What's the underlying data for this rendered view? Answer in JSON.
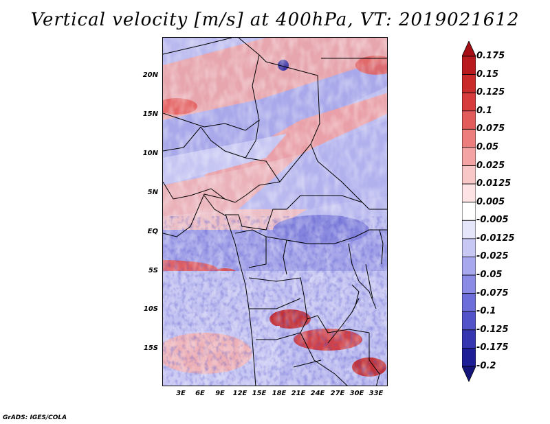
{
  "title": "Vertical velocity [m/s] at 400hPa, VT: 2019021612",
  "credit": "GrADS: IGES/COLA",
  "map": {
    "lat_labels": [
      "20N",
      "15N",
      "10N",
      "5N",
      "EQ",
      "5S",
      "10S",
      "15S"
    ],
    "lon_labels": [
      "3E",
      "6E",
      "9E",
      "12E",
      "15E",
      "18E",
      "21E",
      "24E",
      "27E",
      "30E",
      "33E"
    ]
  },
  "colorbar": {
    "labels": [
      "0.175",
      "0.15",
      "0.125",
      "0.1",
      "0.075",
      "0.05",
      "0.025",
      "0.0125",
      "0.005",
      "-0.005",
      "-0.0125",
      "-0.025",
      "-0.05",
      "-0.075",
      "-0.1",
      "-0.125",
      "-0.175",
      "-0.2"
    ],
    "colors": [
      "#a50f15",
      "#b81a1f",
      "#cb2a2a",
      "#d83b3b",
      "#e35c5c",
      "#ec7e7e",
      "#f3a3a3",
      "#f8c7c7",
      "#fde3e3",
      "#ffffff",
      "#e6e6fb",
      "#c8c8f5",
      "#a8a8ee",
      "#8b8be6",
      "#6e6edb",
      "#5252c9",
      "#3636b0",
      "#1e1e96",
      "#14147a"
    ]
  }
}
